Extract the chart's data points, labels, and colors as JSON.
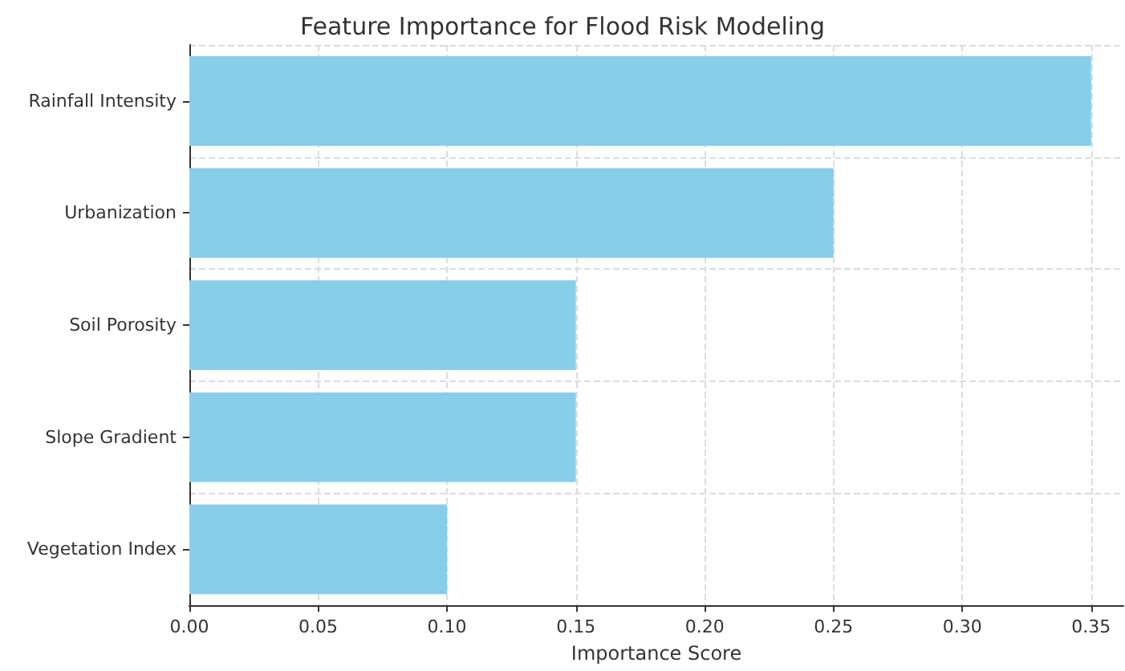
{
  "chart_data": {
    "type": "bar",
    "orientation": "horizontal",
    "title": "Feature Importance for Flood Risk Modeling",
    "xlabel": "Importance Score",
    "categories": [
      "Rainfall Intensity",
      "Urbanization",
      "Soil Porosity",
      "Slope Gradient",
      "Vegetation Index"
    ],
    "values": [
      0.35,
      0.25,
      0.15,
      0.15,
      0.1
    ],
    "color": "#87ceeb",
    "xlim": [
      0,
      0.3625
    ],
    "xticks": [
      {
        "value": 0,
        "label": "0.00"
      },
      {
        "value": 0.05,
        "label": "0.05"
      },
      {
        "value": 0.1,
        "label": "0.10"
      },
      {
        "value": 0.15,
        "label": "0.15"
      },
      {
        "value": 0.2,
        "label": "0.20"
      },
      {
        "value": 0.25,
        "label": "0.25"
      },
      {
        "value": 0.3,
        "label": "0.30"
      },
      {
        "value": 0.35,
        "label": "0.35"
      }
    ],
    "grid": true
  }
}
